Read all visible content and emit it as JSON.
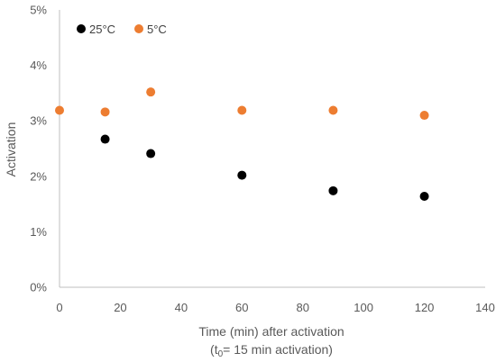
{
  "chart_data": {
    "type": "scatter",
    "xlabel": "Time (min) after activation",
    "xlabel_line2": {
      "prefix": "(t",
      "subscript": "0",
      "suffix": "= 15 min activation)"
    },
    "ylabel": "Activation",
    "xlim": [
      0,
      140
    ],
    "ylim": [
      0,
      0.05
    ],
    "x_ticks": [
      0,
      20,
      40,
      60,
      80,
      100,
      120,
      140
    ],
    "x_tick_labels": [
      "0",
      "20",
      "40",
      "60",
      "80",
      "100",
      "120",
      "140"
    ],
    "y_ticks": [
      0,
      0.01,
      0.02,
      0.03,
      0.04,
      0.05
    ],
    "y_tick_labels": [
      "0%",
      "1%",
      "2%",
      "3%",
      "4%",
      "5%"
    ],
    "grid": false,
    "legend_position": "top-left",
    "series": [
      {
        "name": "25°C",
        "color": "#000000",
        "points": [
          {
            "x": 15,
            "y": 0.0267
          },
          {
            "x": 30,
            "y": 0.0241
          },
          {
            "x": 60,
            "y": 0.0202
          },
          {
            "x": 90,
            "y": 0.0174
          },
          {
            "x": 120,
            "y": 0.0164
          }
        ]
      },
      {
        "name": "5°C",
        "color": "#ED7D31",
        "points": [
          {
            "x": 0,
            "y": 0.0319
          },
          {
            "x": 15,
            "y": 0.0316
          },
          {
            "x": 30,
            "y": 0.0352
          },
          {
            "x": 60,
            "y": 0.0319
          },
          {
            "x": 90,
            "y": 0.0319
          },
          {
            "x": 120,
            "y": 0.031
          }
        ]
      }
    ]
  }
}
